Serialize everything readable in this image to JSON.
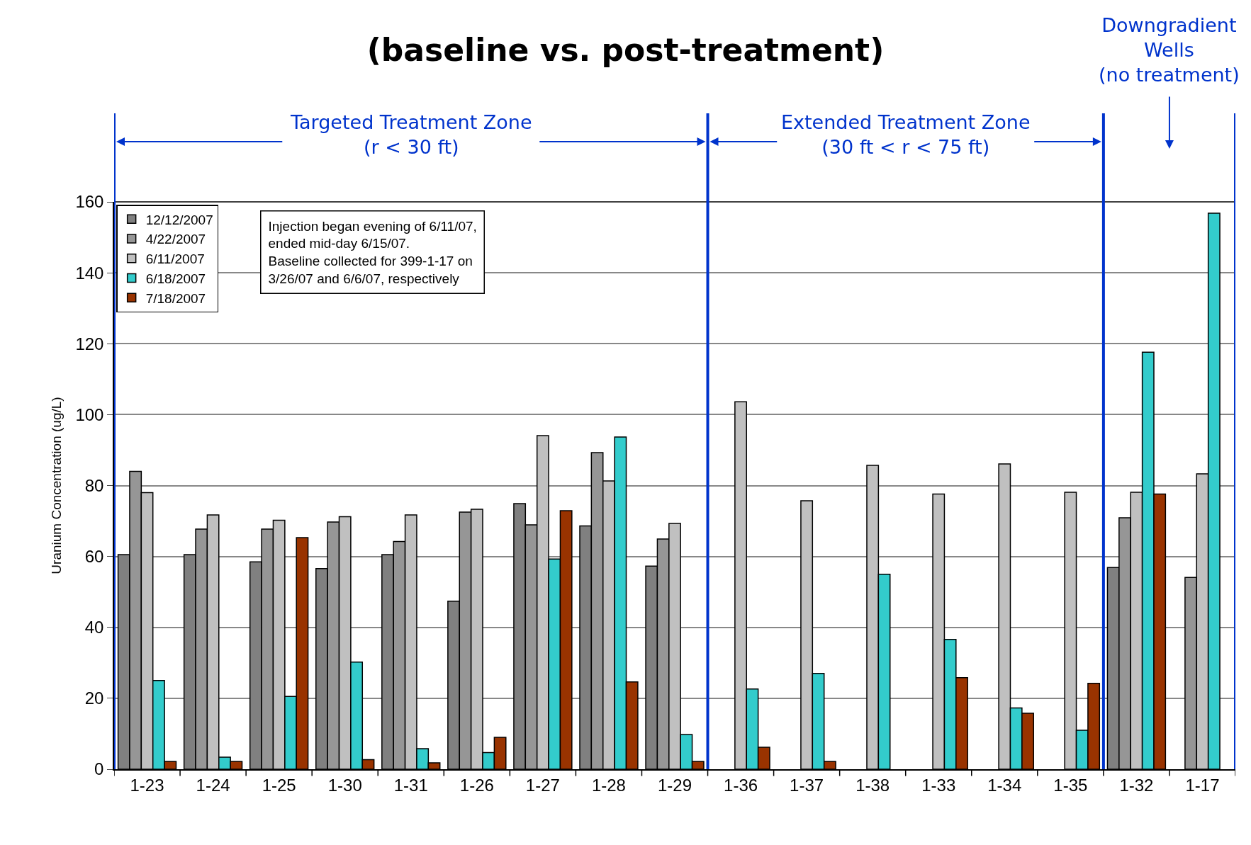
{
  "chart_data": {
    "type": "bar",
    "title": "(baseline vs. post-treatment)",
    "ylabel": "Uranium Concentration (ug/L)",
    "categories": [
      "1-23",
      "1-24",
      "1-25",
      "1-30",
      "1-31",
      "1-26",
      "1-27",
      "1-28",
      "1-29",
      "1-36",
      "1-37",
      "1-38",
      "1-33",
      "1-34",
      "1-35",
      "1-32",
      "1-17"
    ],
    "series": [
      {
        "name": "12/12/2007",
        "color": "#808080",
        "values": [
          60.5,
          60.5,
          58.5,
          56.6,
          60.5,
          47.4,
          74.9,
          68.6,
          57.3,
          null,
          null,
          null,
          null,
          null,
          null,
          56.9,
          null
        ]
      },
      {
        "name": "4/22/2007",
        "color": "#969696",
        "values": [
          84,
          67.7,
          67.7,
          69.7,
          64.2,
          72.5,
          68.9,
          89.3,
          64.9,
          null,
          null,
          null,
          null,
          null,
          null,
          70.9,
          54.1
        ]
      },
      {
        "name": "6/11/2007",
        "color": "#c0c0c0",
        "values": [
          78,
          71.7,
          70.2,
          71.2,
          71.7,
          73.3,
          94.1,
          81.3,
          69.3,
          103.6,
          75.7,
          85.7,
          77.6,
          86.1,
          78.1,
          78.1,
          83.3
        ]
      },
      {
        "name": "6/18/2007",
        "color": "#33cccc",
        "values": [
          25,
          3.4,
          20.5,
          30.2,
          5.8,
          4.7,
          59.3,
          93.7,
          9.8,
          22.6,
          27,
          55,
          36.6,
          17.3,
          11,
          117.6,
          156.8
        ]
      },
      {
        "name": "7/18/2007",
        "color": "#993300",
        "values": [
          2.2,
          2.2,
          65.3,
          2.7,
          1.8,
          9,
          72.9,
          24.6,
          2.2,
          6.2,
          2.2,
          null,
          25.8,
          15.8,
          24.2,
          77.6,
          null
        ]
      }
    ],
    "ylim": [
      0,
      160
    ],
    "yticks": [
      0,
      20,
      40,
      60,
      80,
      100,
      120,
      140,
      160
    ],
    "grid": "y",
    "legend": "top left",
    "annotations": [
      "Injection began evening of 6/11/07,\nended mid-day 6/15/07.\nBaseline collected for 399-1-17 on\n3/26/07 and 6/6/07, respectively",
      "Targeted Treatment Zone\n(r < 30 ft)",
      "Extended Treatment Zone\n(30 ft < r < 75 ft)",
      "Downgradient\nWells\n(no treatment)"
    ]
  }
}
